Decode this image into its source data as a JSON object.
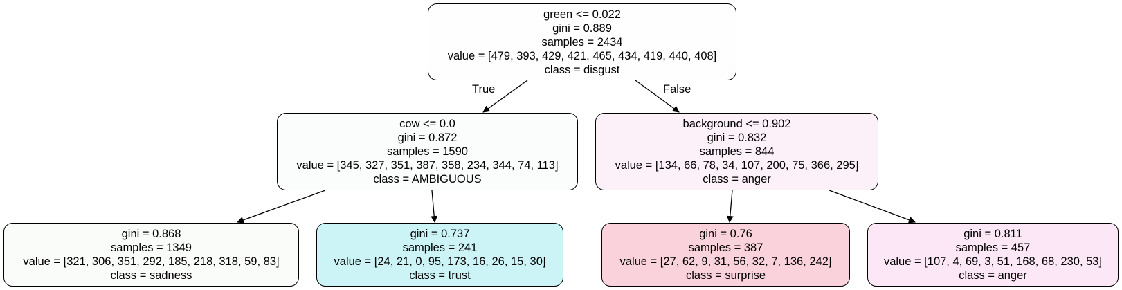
{
  "tree": {
    "nodes": [
      {
        "id": "root",
        "split": "green <= 0.022",
        "gini": "gini = 0.889",
        "samples": "samples = 2434",
        "value": "value = [479, 393, 429, 421, 465, 434, 419, 440, 408]",
        "class": "class = disgust",
        "fill": "#fefefe"
      },
      {
        "id": "left",
        "split": "cow <= 0.0",
        "gini": "gini = 0.872",
        "samples": "samples = 1590",
        "value": "value = [345, 327, 351, 387, 358, 234, 344, 74, 113]",
        "class": "class = AMBIGUOUS",
        "fill": "#fbfdfc"
      },
      {
        "id": "right",
        "split": "background <= 0.902",
        "gini": "gini = 0.832",
        "samples": "samples = 844",
        "value": "value = [134, 66, 78, 34, 107, 200, 75, 366, 295]",
        "class": "class = anger",
        "fill": "#fdf1f9"
      },
      {
        "id": "leaf1",
        "gini": "gini = 0.868",
        "samples": "samples = 1349",
        "value": "value = [321, 306, 351, 292, 185, 218, 318, 59, 83]",
        "class": "class = sadness",
        "fill": "#fafcfa"
      },
      {
        "id": "leaf2",
        "gini": "gini = 0.737",
        "samples": "samples = 241",
        "value": "value = [24, 21, 0, 95, 173, 16, 26, 15, 30]",
        "class": "class = trust",
        "fill": "#ccf4f6"
      },
      {
        "id": "leaf3",
        "gini": "gini = 0.76",
        "samples": "samples = 387",
        "value": "value = [27, 62, 9, 31, 56, 32, 7, 136, 242]",
        "class": "class = surprise",
        "fill": "#f9d2dc"
      },
      {
        "id": "leaf4",
        "gini": "gini = 0.811",
        "samples": "samples = 457",
        "value": "value = [107, 4, 69, 3, 51, 168, 68, 230, 53]",
        "class": "class = anger",
        "fill": "#fbe7f6"
      }
    ],
    "edge_labels": {
      "true": "True",
      "false": "False"
    },
    "stroke_color": "#000000"
  }
}
